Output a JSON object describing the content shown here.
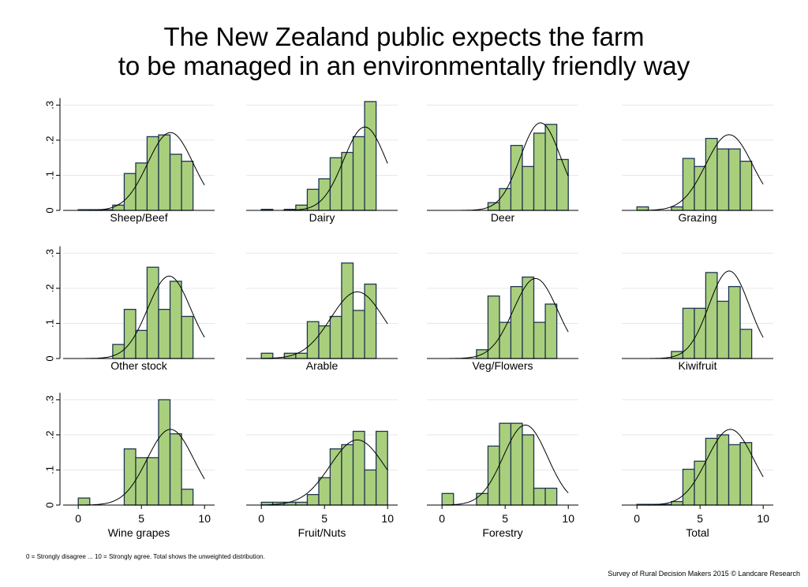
{
  "title_lines": [
    "The New Zealand public expects the farm",
    "to be managed in an environmentally friendly way"
  ],
  "footnote": "0 = Strongly disagree ... 10 = Strongly agree. Total shows the unweighted distribution.",
  "credit": "Survey of Rural Decision Makers 2015 © Landcare Research",
  "colors": {
    "bar_fill": "#a9cf7d",
    "bar_stroke": "#1f3552",
    "curve": "#000000",
    "grid": "#e8e8e8"
  },
  "chart_data": {
    "type": "bar",
    "layout": "3x4 small multiples of histograms with fitted normal curves",
    "bin_lefts": [
      0,
      0.91,
      1.82,
      2.73,
      3.64,
      4.55,
      5.45,
      6.36,
      7.27,
      8.18,
      9.09
    ],
    "bin_width": 0.91,
    "xlim": [
      -1.2,
      10.8
    ],
    "ylim": [
      0,
      0.33
    ],
    "x_ticks": [
      0,
      5,
      10
    ],
    "y_ticks": [
      0,
      0.1,
      0.2,
      0.3
    ],
    "y_tick_labels": [
      "0",
      ".1",
      ".2",
      ".3"
    ],
    "grid": true,
    "panels": [
      {
        "label": "Sheep/Beef",
        "values": [
          0.002,
          0.002,
          0.002,
          0.015,
          0.105,
          0.135,
          0.21,
          0.215,
          0.16,
          0.14,
          0
        ],
        "curve": {
          "mean": 7.3,
          "sd": 1.8
        }
      },
      {
        "label": "Dairy",
        "values": [
          0.003,
          0,
          0.003,
          0.015,
          0.06,
          0.09,
          0.15,
          0.165,
          0.21,
          0.31,
          0
        ],
        "curve": {
          "mean": 8.2,
          "sd": 1.68
        }
      },
      {
        "label": "Deer",
        "values": [
          0,
          0,
          0,
          0,
          0.022,
          0.062,
          0.185,
          0.125,
          0.22,
          0.245,
          0.145
        ],
        "curve": {
          "mean": 7.8,
          "sd": 1.6
        }
      },
      {
        "label": "Grazing",
        "values": [
          0.01,
          0,
          0,
          0.01,
          0.148,
          0.125,
          0.205,
          0.175,
          0.175,
          0.14,
          0
        ],
        "curve": {
          "mean": 7.3,
          "sd": 1.85
        }
      },
      {
        "label": "Other stock",
        "values": [
          0,
          0,
          0,
          0.04,
          0.14,
          0.08,
          0.26,
          0.14,
          0.22,
          0.12,
          0
        ],
        "curve": {
          "mean": 7.2,
          "sd": 1.7
        }
      },
      {
        "label": "Arable",
        "values": [
          0.015,
          0,
          0.015,
          0.015,
          0.105,
          0.093,
          0.12,
          0.272,
          0.137,
          0.212,
          0
        ],
        "curve": {
          "mean": 7.6,
          "sd": 2.1
        }
      },
      {
        "label": "Veg/Flowers",
        "values": [
          0,
          0,
          0,
          0.025,
          0.178,
          0.103,
          0.205,
          0.232,
          0.103,
          0.155,
          0
        ],
        "curve": {
          "mean": 7.4,
          "sd": 1.75
        }
      },
      {
        "label": "Kiwifruit",
        "values": [
          0,
          0,
          0,
          0.02,
          0.143,
          0.143,
          0.245,
          0.163,
          0.205,
          0.083,
          0
        ],
        "curve": {
          "mean": 7.3,
          "sd": 1.6
        }
      },
      {
        "label": "Wine grapes",
        "values": [
          0.02,
          0,
          0,
          0,
          0.16,
          0.135,
          0.135,
          0.3,
          0.203,
          0.045,
          0
        ],
        "curve": {
          "mean": 7.3,
          "sd": 1.85
        }
      },
      {
        "label": "Fruit/Nuts",
        "values": [
          0.008,
          0.008,
          0.008,
          0.008,
          0.03,
          0.078,
          0.16,
          0.172,
          0.21,
          0.1,
          0.21
        ],
        "curve": {
          "mean": 7.6,
          "sd": 2.15
        }
      },
      {
        "label": "Forestry",
        "values": [
          0.033,
          0,
          0,
          0.033,
          0.168,
          0.233,
          0.233,
          0.2,
          0.048,
          0.048,
          0
        ],
        "curve": {
          "mean": 6.6,
          "sd": 1.75
        }
      },
      {
        "label": "Total",
        "values": [
          0.002,
          0.002,
          0.002,
          0.01,
          0.102,
          0.125,
          0.19,
          0.2,
          0.172,
          0.178,
          0
        ],
        "curve": {
          "mean": 7.4,
          "sd": 1.85
        }
      }
    ]
  }
}
